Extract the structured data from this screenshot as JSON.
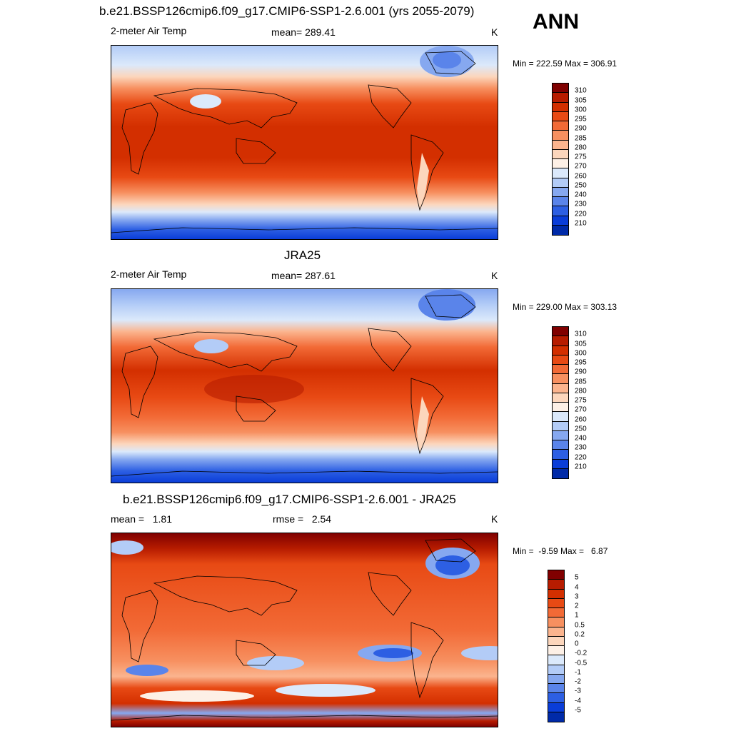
{
  "corner_label": "ANN",
  "panels": [
    {
      "title": "b.e21.BSSP126cmip6.f09_g17.CMIP6-SSP1-2.6.001 (yrs 2055-2079)",
      "left_label": "2-meter Air Temp",
      "center_label": "mean= 289.41",
      "right_label": "K",
      "minmax": "Min = 222.59 Max = 306.91",
      "colorbar": {
        "labels": [
          "310",
          "305",
          "300",
          "295",
          "290",
          "285",
          "280",
          "275",
          "270",
          "260",
          "250",
          "240",
          "230",
          "220",
          "210"
        ],
        "colors": [
          "#800000",
          "#b71c00",
          "#d32f00",
          "#e84a14",
          "#f26a36",
          "#f79060",
          "#fbb48e",
          "#fcd6bc",
          "#fdf0e6",
          "#dbe9fb",
          "#b3ccf7",
          "#86a8f0",
          "#5a84ea",
          "#2d5fe3",
          "#0a3dd8",
          "#002aa8"
        ]
      }
    },
    {
      "title": "JRA25",
      "left_label": "2-meter Air Temp",
      "center_label": "mean= 287.61",
      "right_label": "K",
      "minmax": "Min = 229.00 Max = 303.13",
      "colorbar": {
        "labels": [
          "310",
          "305",
          "300",
          "295",
          "290",
          "285",
          "280",
          "275",
          "270",
          "260",
          "250",
          "240",
          "230",
          "220",
          "210"
        ],
        "colors": [
          "#800000",
          "#b71c00",
          "#d32f00",
          "#e84a14",
          "#f26a36",
          "#f79060",
          "#fbb48e",
          "#fcd6bc",
          "#fdf0e6",
          "#dbe9fb",
          "#b3ccf7",
          "#86a8f0",
          "#5a84ea",
          "#2d5fe3",
          "#0a3dd8",
          "#002aa8"
        ]
      }
    },
    {
      "title": "b.e21.BSSP126cmip6.f09_g17.CMIP6-SSP1-2.6.001 - JRA25",
      "left_label": "mean =   1.81",
      "center_label": "rmse =   2.54",
      "right_label": "K",
      "minmax": "Min =  -9.59 Max =   6.87",
      "colorbar": {
        "labels": [
          "5",
          "4",
          "3",
          "2",
          "1",
          "0.5",
          "0.2",
          "0",
          "-0.2",
          "-0.5",
          "-1",
          "-2",
          "-3",
          "-4",
          "-5"
        ],
        "colors": [
          "#800000",
          "#b71c00",
          "#d32f00",
          "#e84a14",
          "#f26a36",
          "#f79060",
          "#fbb48e",
          "#fcd6bc",
          "#fdf0e6",
          "#dbe9fb",
          "#b3ccf7",
          "#86a8f0",
          "#5a84ea",
          "#2d5fe3",
          "#0a3dd8",
          "#002aa8"
        ]
      }
    }
  ]
}
